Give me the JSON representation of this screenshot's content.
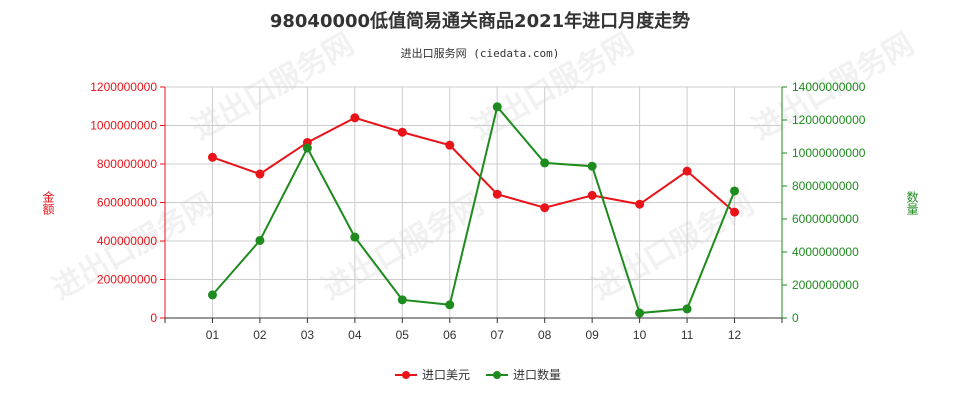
{
  "chart_data": {
    "type": "line",
    "title": "98040000低值简易通关商品2021年进口月度走势",
    "subtitle": "进出口服务网 (ciedata.com)",
    "categories": [
      "01",
      "02",
      "03",
      "04",
      "05",
      "06",
      "07",
      "08",
      "09",
      "10",
      "11",
      "12"
    ],
    "y_left": {
      "label": "金额",
      "ylim": [
        0,
        1200000000
      ],
      "ticks": [
        "0",
        "200000000",
        "400000000",
        "600000000",
        "800000000",
        "1000000000",
        "1200000000"
      ],
      "tick_values": [
        0,
        200000000,
        400000000,
        600000000,
        800000000,
        1000000000,
        1200000000
      ]
    },
    "y_right": {
      "label": "数量",
      "ylim": [
        0,
        14000000000
      ],
      "ticks": [
        "0",
        "2000000000",
        "4000000000",
        "6000000000",
        "8000000000",
        "10000000000",
        "12000000000",
        "14000000000"
      ],
      "tick_values": [
        0,
        2000000000,
        4000000000,
        6000000000,
        8000000000,
        10000000000,
        12000000000,
        14000000000
      ]
    },
    "series": [
      {
        "name": "进口美元",
        "axis": "left",
        "color": "#e8141a",
        "values": [
          835000000,
          748000000,
          912000000,
          1040000000,
          965000000,
          898000000,
          643000000,
          573000000,
          637000000,
          591000000,
          763000000,
          550000000
        ]
      },
      {
        "name": "进口数量",
        "axis": "right",
        "color": "#1e8b1e",
        "values": [
          1400000000,
          4700000000,
          10300000000,
          4900000000,
          1100000000,
          800000000,
          12800000000,
          9400000000,
          9200000000,
          300000000,
          550000000,
          7700000000
        ]
      }
    ],
    "grid": true,
    "legend_position": "bottom-center"
  },
  "watermark_text": "进出口服务网"
}
